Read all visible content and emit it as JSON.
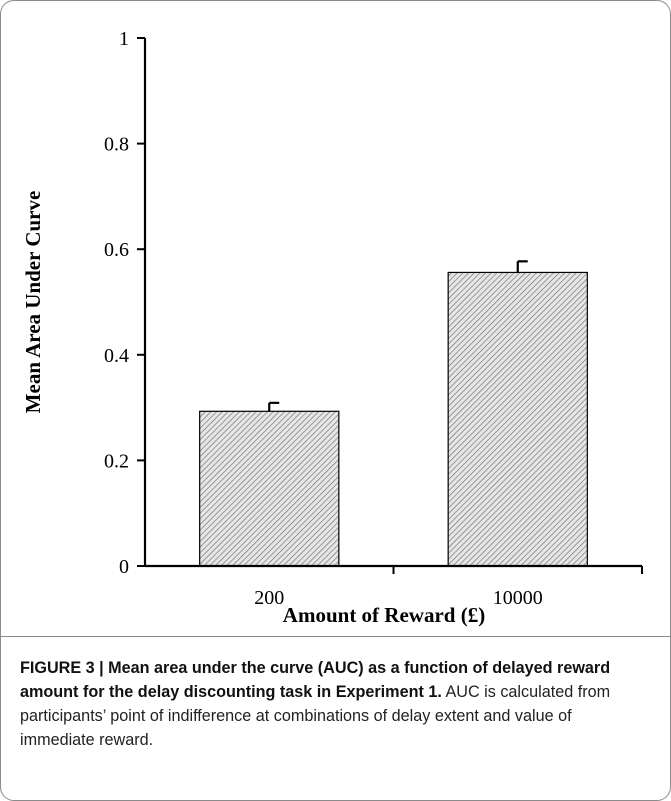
{
  "chart_data": {
    "type": "bar",
    "title": "",
    "xlabel": "Amount of Reward (£)",
    "ylabel": "Mean Area Under Curve",
    "categories": [
      "200",
      "10000"
    ],
    "values": [
      0.293,
      0.556
    ],
    "error": [
      0.016,
      0.021
    ],
    "ylim": [
      0,
      1
    ],
    "yticks": [
      0,
      0.2,
      0.4,
      0.6,
      0.8,
      1
    ],
    "ytick_labels": [
      "0",
      "0.2",
      "0.4",
      "0.6",
      "0.8",
      "1"
    ],
    "bar_fill": "diagonal-hatch",
    "grid": false,
    "legend": "none"
  },
  "caption": {
    "lead": "FIGURE 3 | Mean area under the curve (AUC) as a function of delayed reward amount for the delay discounting task in Experiment 1.",
    "body": " AUC is calculated from participants’ point of indifference at combinations of delay extent and value of immediate reward."
  },
  "colors": {
    "border": "#8c8c8c",
    "axis": "#000000",
    "bar_fill": "#e6e6e6",
    "hatch": "#555555"
  }
}
